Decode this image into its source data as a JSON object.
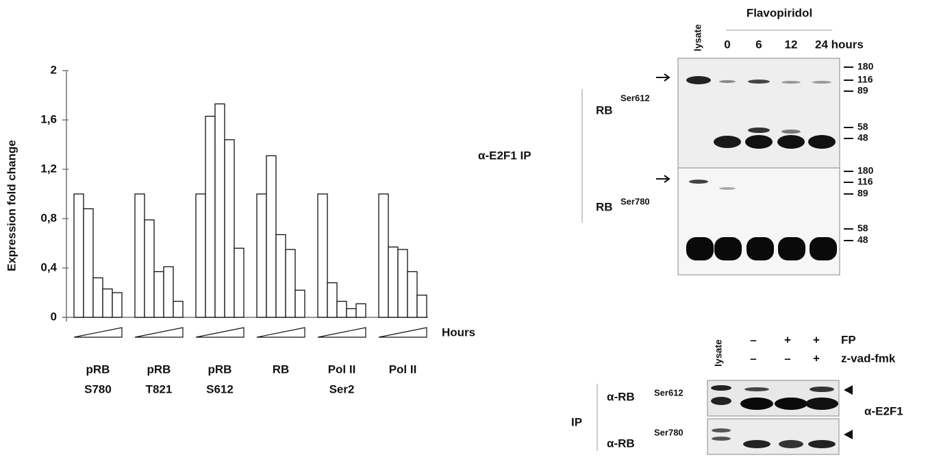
{
  "chart_data": {
    "type": "grouped-bar",
    "y_label": "Expression fold change",
    "x_label": "Hours",
    "categories": [
      [
        "pRB",
        "S780"
      ],
      [
        "pRB",
        "T821"
      ],
      [
        "pRB",
        "S612"
      ],
      [
        "RB"
      ],
      [
        "Pol II",
        "Ser2"
      ],
      [
        "Pol II"
      ]
    ],
    "values": [
      [
        1.0,
        0.88,
        0.32,
        0.23,
        0.2
      ],
      [
        1.0,
        0.79,
        0.37,
        0.41,
        0.13
      ],
      [
        1.0,
        1.63,
        1.73,
        1.44,
        0.56
      ],
      [
        1.0,
        1.31,
        0.67,
        0.55,
        0.22
      ],
      [
        1.0,
        0.28,
        0.13,
        0.07,
        0.11
      ],
      [
        1.0,
        0.57,
        0.55,
        0.37,
        0.18
      ]
    ],
    "color": "#ffffff",
    "ylim": [
      0,
      2
    ],
    "yticks": [
      0,
      {
        "value": 0.4,
        "label": "0,4"
      },
      {
        "value": 0.8,
        "label": "0,8"
      },
      {
        "value": 1.2,
        "label": "1,2"
      },
      {
        "value": 1.6,
        "label": "1,6"
      },
      2
    ]
  },
  "blot_top": {
    "lysate": "lysate",
    "treatment": "Flavopiridol",
    "lanes": [
      "0",
      "6",
      "12",
      "24 hours"
    ],
    "ip": "α-E2F1  IP",
    "panels": [
      {
        "antibody": "RB",
        "site": "Ser612",
        "markers": [
          180,
          116,
          89,
          58,
          48
        ]
      },
      {
        "antibody": "RB",
        "site": "Ser780",
        "markers": [
          180,
          116,
          89,
          58,
          48
        ]
      }
    ]
  },
  "blot_bottom": {
    "lysate": "lysate",
    "rows": [
      {
        "name": "FP",
        "signs": [
          "–",
          "+",
          "+"
        ]
      },
      {
        "name": "z-vad-fmk",
        "signs": [
          "–",
          "–",
          "+"
        ]
      }
    ],
    "ip": "IP",
    "detect": "α-E2F1",
    "panels": [
      {
        "antibody": "α-RB",
        "site": "Ser612"
      },
      {
        "antibody": "α-RB",
        "site": "Ser780"
      }
    ]
  }
}
